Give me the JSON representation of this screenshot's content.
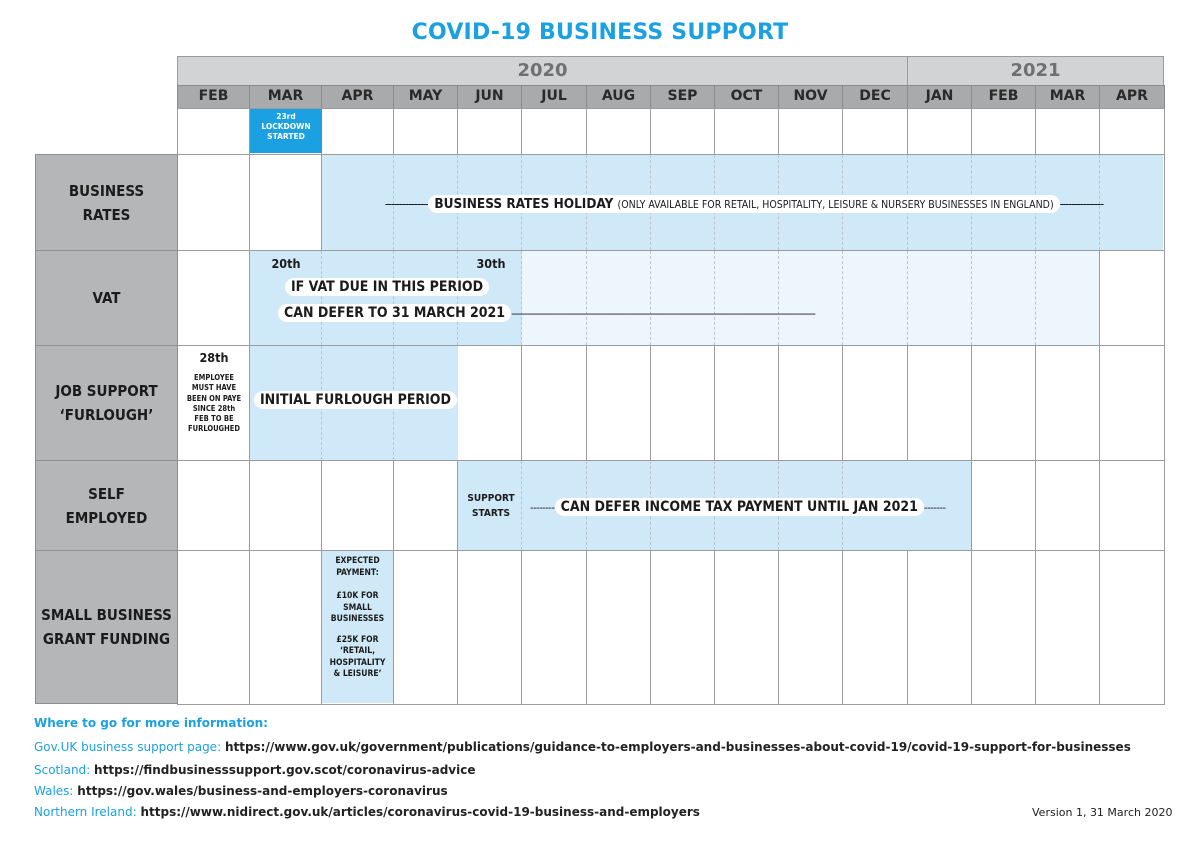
{
  "title": "COVID-19 BUSINESS SUPPORT",
  "years": [
    "2020",
    "2021"
  ],
  "months": [
    "FEB",
    "MAR",
    "APR",
    "MAY",
    "JUN",
    "JUL",
    "AUG",
    "SEP",
    "OCT",
    "NOV",
    "DEC",
    "JAN",
    "FEB",
    "MAR",
    "APR"
  ],
  "lockdown_note": [
    "23rd",
    "LOCKDOWN",
    "STARTED"
  ],
  "rows": {
    "business_rates": {
      "label": "BUSINESS RATES",
      "dashes_left": "---------------",
      "main_text": "BUSINESS RATES HOLIDAY",
      "sub_text": "(ONLY AVAILABLE FOR RETAIL, HOSPITALITY, LEISURE & NURSERY BUSINESSES IN ENGLAND)",
      "dashes_right": "---------------"
    },
    "vat": {
      "label": "VAT",
      "start_day": "20th",
      "end_day": "30th",
      "line1": "IF VAT DUE IN THIS PERIOD",
      "line2": "CAN DEFER TO 31 MARCH 2021",
      "dashes": "--------------------------------------------------------------------------------------------------------------------------------"
    },
    "furlough": {
      "label_line1": "JOB SUPPORT",
      "label_line2": "‘FURLOUGH’",
      "day": "28th",
      "note": [
        "EMPLOYEE",
        "MUST HAVE",
        "BEEN ON PAYE",
        "SINCE 28th",
        "FEB TO BE",
        "FURLOUGHED"
      ],
      "period": "INITIAL FURLOUGH PERIOD"
    },
    "self_employed": {
      "label_line1": "SELF",
      "label_line2": "EMPLOYED",
      "support": [
        "SUPPORT",
        "STARTS"
      ],
      "dashes_left": "--------",
      "text": "CAN DEFER INCOME TAX PAYMENT UNTIL JAN 2021",
      "dashes_right": "-------"
    },
    "grants": {
      "label_line1": "SMALL BUSINESS",
      "label_line2": "GRANT FUNDING",
      "note1": [
        "EXPECTED",
        "PAYMENT:"
      ],
      "note2": [
        "£10K FOR",
        "SMALL",
        "BUSINESSES"
      ],
      "note3": [
        "£25K FOR",
        "‘RETAIL,",
        "HOSPITALITY",
        "& LEISURE’"
      ]
    }
  },
  "info": {
    "heading": "Where to go for more information:",
    "links": [
      {
        "label": "Gov.UK business support page:",
        "url": "https://www.gov.uk/government/publications/guidance-to-employers-and-businesses-about-covid-19/covid-19-support-for-businesses"
      },
      {
        "label": "Scotland:",
        "url": "https://findbusinesssupport.gov.scot/coronavirus-advice"
      },
      {
        "label": "Wales:",
        "url": "https://gov.wales/business-and-employers-coronavirus"
      },
      {
        "label": "Northern Ireland:",
        "url": "https://www.nidirect.gov.uk/articles/coronavirus-covid-19-business-and-employers"
      }
    ],
    "version": "Version 1, 31 March 2020"
  },
  "colors": {
    "accent": "#1ba1e2",
    "band": "#cfe9f8",
    "band_pale": "#ecf6fc",
    "label_bg": "#b5b6b8",
    "month_bg": "#a9aaac",
    "year_bg": "#d2d3d5"
  }
}
